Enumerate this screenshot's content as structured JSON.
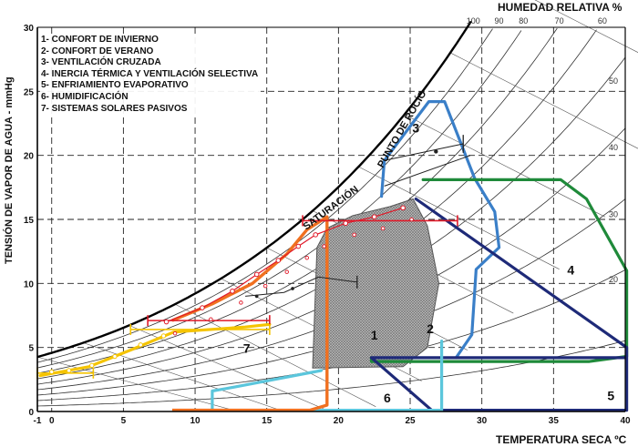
{
  "chart_data": {
    "type": "psychrometric",
    "xlabel": "TEMPERATURA SECA ºC",
    "ylabel": "TENSIÓN DE VAPOR DE AGUA - mmHg",
    "rh_title": "HUMEDAD RELATIVA %",
    "xlim": [
      -1,
      40
    ],
    "ylim": [
      0,
      30
    ],
    "x_ticks": [
      "-1",
      "0",
      "5",
      "10",
      "15",
      "20",
      "25",
      "30",
      "35",
      "40"
    ],
    "y_ticks": [
      "0",
      "5",
      "10",
      "15",
      "20",
      "25",
      "30"
    ],
    "rh_top_labels": [
      {
        "label": "100",
        "x": 29.4
      },
      {
        "label": "90",
        "x": 31.2
      },
      {
        "label": "80",
        "x": 32.9
      },
      {
        "label": "70",
        "x": 35.4
      },
      {
        "label": "60",
        "x": 38.4
      }
    ],
    "rh_side_labels": [
      {
        "label": "50",
        "y": 25.8
      },
      {
        "label": "40",
        "y": 20.6
      },
      {
        "label": "30",
        "y": 15.4
      },
      {
        "label": "20",
        "y": 10.3
      }
    ],
    "curve_labels": {
      "saturation": "SATURACIÓN",
      "dew_point": "PUNTO DE ROCÍO"
    },
    "legend": [
      "1- CONFORT DE INVIERNO",
      "2- CONFORT DE VERANO",
      "3- VENTILACIÓN CRUZADA",
      "4- INERCIA TÉRMICA Y VENTILACIÓN SELECTIVA",
      "5- ENFRIAMIENTO EVAPORATIVO",
      "6- HUMIDIFICACIÓN",
      "7- SISTEMAS SOLARES PASIVOS"
    ],
    "zones": [
      {
        "id": "1",
        "name": "CONFORT DE INVIERNO",
        "color": "#888888",
        "label_pos": [
          22.5,
          5.6
        ],
        "points": [
          [
            18.2,
            3.4
          ],
          [
            18.5,
            12.8
          ],
          [
            19.2,
            14.3
          ],
          [
            21,
            15.3
          ],
          [
            23.6,
            16.0
          ],
          [
            25.2,
            16.6
          ],
          [
            26.2,
            14.5
          ],
          [
            27,
            10.0
          ],
          [
            26.2,
            5.0
          ],
          [
            24.5,
            3.5
          ],
          [
            18.2,
            3.4
          ]
        ]
      },
      {
        "id": "2",
        "name": "CONFORT DE VERANO",
        "label_pos": [
          26.4,
          6.1
        ]
      },
      {
        "id": "3",
        "name": "VENTILACIÓN CRUZADA",
        "color": "#3a7fc8",
        "label_pos": [
          25.4,
          21.8
        ],
        "points": [
          [
            23,
            16.8
          ],
          [
            23.2,
            19.6
          ],
          [
            26.3,
            24.2
          ],
          [
            27.4,
            24.2
          ],
          [
            29.5,
            18.2
          ],
          [
            30.9,
            15.6
          ],
          [
            31.2,
            12.8
          ],
          [
            29.6,
            11.1
          ],
          [
            29.3,
            6.0
          ],
          [
            28.2,
            4.2
          ]
        ]
      },
      {
        "id": "4",
        "name": "INERCIA TÉRMICA Y VENTILACIÓN SELECTIVA",
        "color": "#1f8a3a",
        "label_pos": [
          36.2,
          10.7
        ],
        "points": [
          [
            25.9,
            18.1
          ],
          [
            35.5,
            18.1
          ],
          [
            37.3,
            16.6
          ],
          [
            40.1,
            11.0
          ],
          [
            40.1,
            4.3
          ],
          [
            37.5,
            3.9
          ],
          [
            22.3,
            3.9
          ],
          [
            22.3,
            4.2
          ]
        ]
      },
      {
        "id": "5",
        "name": "ENFRIAMIENTO EVAPORATIVO",
        "color": "#1e2a78",
        "label_pos": [
          39.0,
          0.9
        ],
        "points": [
          [
            25.4,
            16.6
          ],
          [
            40.1,
            5.0
          ],
          [
            40.1,
            0.1
          ],
          [
            26.5,
            0.1
          ],
          [
            22.3,
            4.2
          ],
          [
            40.1,
            4.2
          ]
        ]
      },
      {
        "id": "6",
        "name": "HUMIDIFICACIÓN",
        "color": "#5bc6dc",
        "label_pos": [
          23.4,
          0.7
        ],
        "points": [
          [
            27.2,
            5.5
          ],
          [
            27.2,
            0.1
          ],
          [
            11.2,
            0.1
          ],
          [
            11.2,
            1.6
          ],
          [
            12.2,
            1.8
          ],
          [
            18.8,
            3.2
          ]
        ]
      },
      {
        "id": "7",
        "name": "SISTEMAS SOLARES PASIVOS",
        "color": "#f5c400",
        "label_pos": [
          13.6,
          4.6
        ],
        "points": [
          [
            -0.8,
            2.8
          ],
          [
            2.6,
            3.5
          ],
          [
            5.5,
            4.8
          ],
          [
            8.5,
            6.2
          ],
          [
            13.5,
            6.6
          ],
          [
            15.2,
            6.8
          ]
        ]
      }
    ],
    "orange_zone": {
      "color": "#f07020",
      "points": [
        [
          8.4,
          7.1
        ],
        [
          11.2,
          8.4
        ],
        [
          14.0,
          10.0
        ],
        [
          16.4,
          12.3
        ],
        [
          17.8,
          14.2
        ],
        [
          19.2,
          15.2
        ],
        [
          19.2,
          0.5
        ],
        [
          18.0,
          0.1
        ],
        [
          8.4,
          0.1
        ]
      ]
    },
    "red_markers": {
      "color": "#e01828",
      "horizontal_bars": [
        {
          "x": [
            17.5,
            28.3
          ],
          "y": 14.9
        },
        {
          "x": [
            6.7,
            15.2
          ],
          "y": 7.1
        }
      ],
      "trace": [
        [
          8.0,
          7.0
        ],
        [
          10.5,
          8.1
        ],
        [
          12.6,
          9.4
        ],
        [
          14.3,
          10.7
        ],
        [
          15.8,
          11.8
        ],
        [
          17.2,
          12.9
        ],
        [
          18.4,
          13.8
        ],
        [
          20.5,
          14.7
        ],
        [
          22.5,
          15.2
        ],
        [
          24.5,
          15.9
        ]
      ]
    },
    "yellow_markers": {
      "color": "#f5c400",
      "horizontal_bars": [
        {
          "x": [
            -1,
            2.9
          ],
          "y": 3.0
        },
        {
          "x": [
            5.5,
            15.2
          ],
          "y": 6.4
        }
      ]
    },
    "extra_lines": [
      {
        "color": "#222222",
        "points": [
          [
            23.2,
            19.6
          ],
          [
            28.7,
            20.9
          ]
        ]
      },
      {
        "color": "#222222",
        "points": [
          [
            23.2,
            17.6
          ],
          [
            29.2,
            20.0
          ]
        ]
      }
    ]
  }
}
